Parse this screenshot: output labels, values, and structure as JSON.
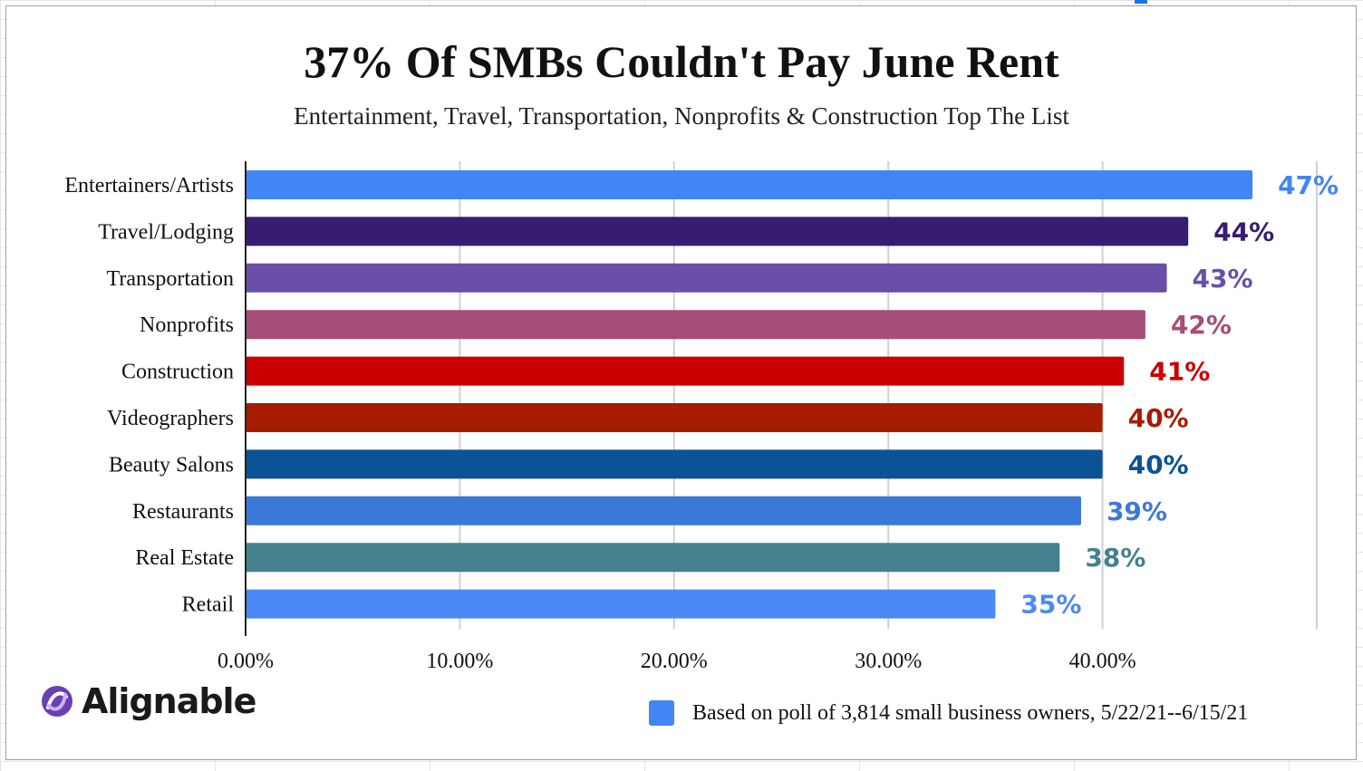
{
  "chart_data": {
    "type": "bar",
    "orientation": "horizontal",
    "title": "37% Of SMBs Couldn't Pay June Rent",
    "subtitle": "Entertainment, Travel, Transportation, Nonprofits & Construction Top The List",
    "categories": [
      "Entertainers/Artists",
      "Travel/Lodging",
      "Transportation",
      "Nonprofits",
      "Construction",
      "Videographers",
      "Beauty Salons",
      "Restaurants",
      "Real Estate",
      "Retail"
    ],
    "values": [
      47,
      44,
      43,
      42,
      41,
      40,
      40,
      39,
      38,
      35
    ],
    "data_labels": [
      "47%",
      "44%",
      "43%",
      "42%",
      "41%",
      "40%",
      "40%",
      "39%",
      "38%",
      "35%"
    ],
    "colors": [
      "#4285f4",
      "#371c72",
      "#6a4fa8",
      "#a64d79",
      "#cc0000",
      "#a61c00",
      "#0b5394",
      "#3c78d8",
      "#45818e",
      "#4a8af4"
    ],
    "label_colors": [
      "#4285f4",
      "#371c72",
      "#6a4fa8",
      "#a64d79",
      "#cc0000",
      "#a61c00",
      "#0b5394",
      "#3c78d8",
      "#45818e",
      "#4a8af4"
    ],
    "x_ticks": [
      0,
      10,
      20,
      30,
      40,
      50
    ],
    "x_tick_labels": [
      "0.00%",
      "10.00%",
      "20.00%",
      "30.00%",
      "40.00%",
      ""
    ],
    "xlim": [
      0,
      50
    ],
    "xlabel": "",
    "ylabel": "",
    "grid": true,
    "legend": {
      "position": "bottom-right",
      "entries": [
        {
          "label": "Based on poll of 3,814 small business owners, 5/22/21--6/15/21",
          "color": "#4285f4"
        }
      ]
    }
  },
  "brand": {
    "name": "Alignable",
    "icon": "alignable-logo-icon",
    "color": "#6a3fb5"
  }
}
